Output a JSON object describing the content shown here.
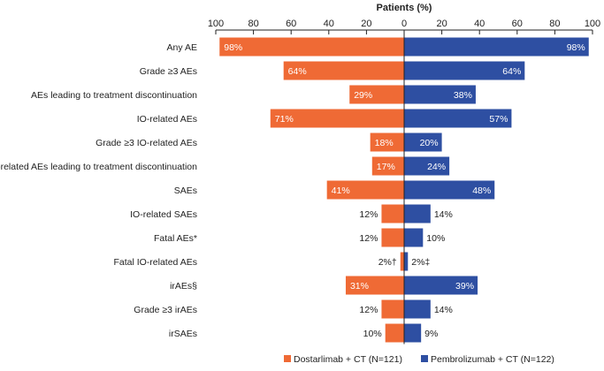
{
  "chart_data": {
    "type": "bar",
    "orientation": "horizontal-butterfly",
    "title": "",
    "xlabel": "Patients (%)",
    "xlim": [
      -100,
      100
    ],
    "tick_labels": [
      "100",
      "80",
      "60",
      "40",
      "20",
      "0",
      "20",
      "40",
      "60",
      "80",
      "100"
    ],
    "categories": [
      "Any AE",
      "Grade ≥3 AEs",
      "AEs leading to treatment discontinuation",
      "IO-related AEs",
      "Grade ≥3 IO-related AEs",
      "IO-related AEs leading to treatment discontinuation",
      "SAEs",
      "IO-related SAEs",
      "Fatal AEs*",
      "Fatal IO-related AEs",
      "irAEs§",
      "Grade ≥3 irAEs",
      "irSAEs"
    ],
    "series": [
      {
        "name": "Dostarlimab + CT (N=121)",
        "side": "left",
        "color": "#ef6a35",
        "values": [
          98,
          64,
          29,
          71,
          18,
          17,
          41,
          12,
          12,
          2,
          31,
          12,
          10
        ],
        "labels": [
          "98%",
          "64%",
          "29%",
          "71%",
          "18%",
          "17%",
          "41%",
          "12%",
          "12%",
          "2%†",
          "31%",
          "12%",
          "10%"
        ]
      },
      {
        "name": "Pembrolizumab + CT (N=122)",
        "side": "right",
        "color": "#2e4fa2",
        "values": [
          98,
          64,
          38,
          57,
          20,
          24,
          48,
          14,
          10,
          2,
          39,
          14,
          9
        ],
        "labels": [
          "98%",
          "64%",
          "38%",
          "57%",
          "20%",
          "24%",
          "48%",
          "14%",
          "10%",
          "2%‡",
          "39%",
          "14%",
          "9%"
        ]
      }
    ],
    "legend_position": "bottom-right",
    "grid": false
  }
}
